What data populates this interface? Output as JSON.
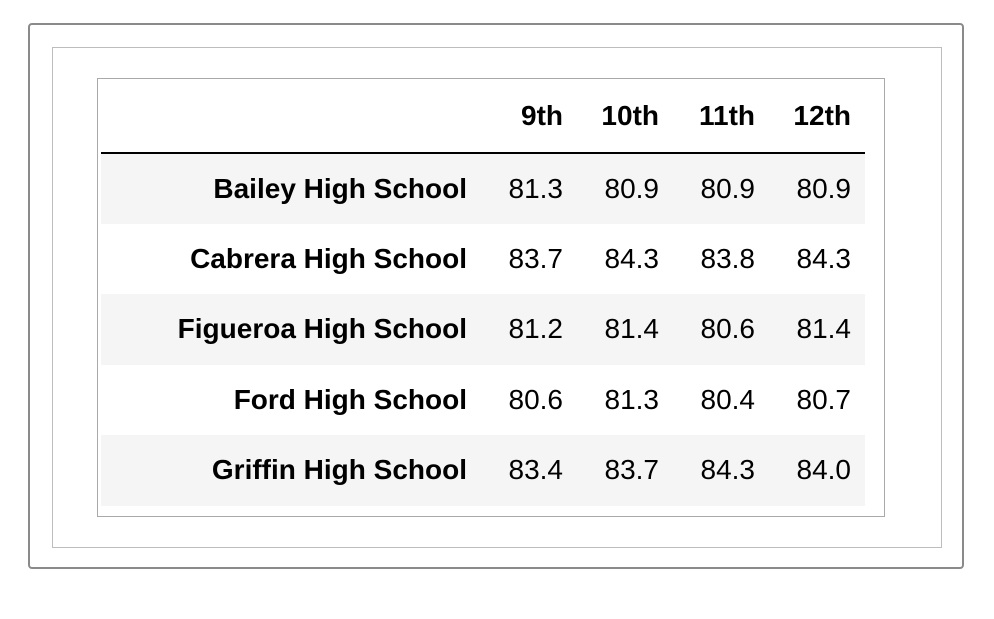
{
  "table": {
    "columns": [
      "9th",
      "10th",
      "11th",
      "12th"
    ],
    "rows": [
      {
        "school": "Bailey High School",
        "values": [
          "81.3",
          "80.9",
          "80.9",
          "80.9"
        ]
      },
      {
        "school": "Cabrera High School",
        "values": [
          "83.7",
          "84.3",
          "83.8",
          "84.3"
        ]
      },
      {
        "school": "Figueroa High School",
        "values": [
          "81.2",
          "81.4",
          "80.6",
          "81.4"
        ]
      },
      {
        "school": "Ford High School",
        "values": [
          "80.6",
          "81.3",
          "80.4",
          "80.7"
        ]
      },
      {
        "school": "Griffin High School",
        "values": [
          "83.4",
          "83.7",
          "84.3",
          "84.0"
        ]
      }
    ]
  },
  "colors": {
    "stripe": "#f5f5f5",
    "header_rule": "#000000",
    "outer_border": "#8a8a8a"
  }
}
